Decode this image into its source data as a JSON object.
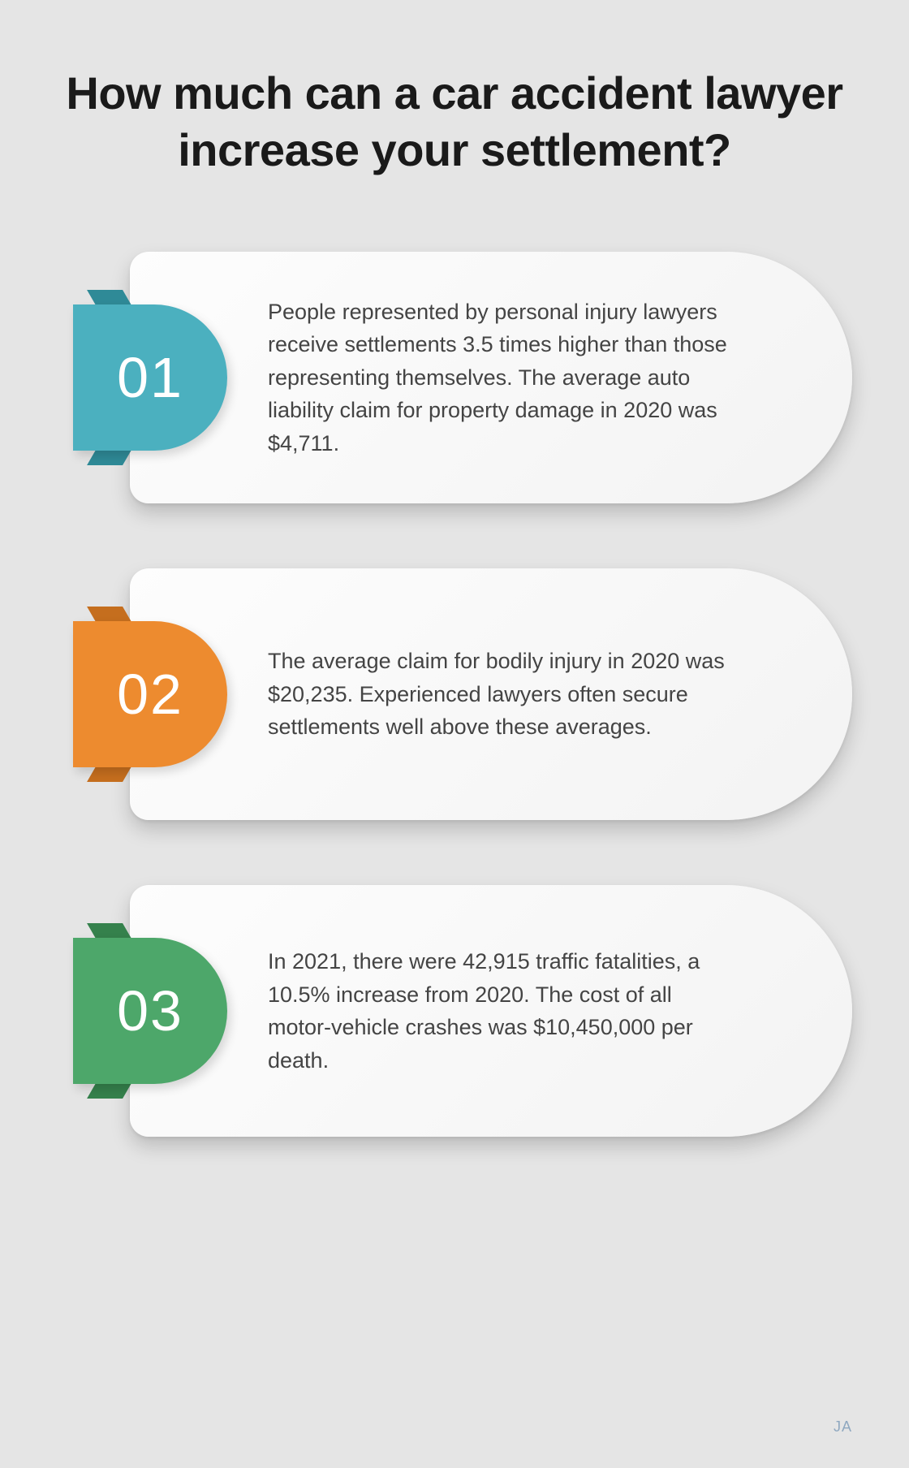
{
  "title": "How much can a car accident lawyer increase your settlement?",
  "items": [
    {
      "num": "01",
      "text": "People represented by personal injury lawyers receive settlements 3.5 times higher than those representing themselves. The average auto liability claim for property damage in 2020 was $4,711.",
      "badge_color": "#4bb0bf",
      "fold_color": "#2f8a97"
    },
    {
      "num": "02",
      "text": "The average claim for bodily injury in 2020 was $20,235. Experienced lawyers often secure settlements well above these averages.",
      "badge_color": "#ed8b2f",
      "fold_color": "#c56e1e"
    },
    {
      "num": "03",
      "text": "In 2021, there were 42,915 traffic fatalities, a 10.5% increase from 2020. The cost of all motor-vehicle crashes was $10,450,000 per death.",
      "badge_color": "#4da76a",
      "fold_color": "#35814c"
    }
  ],
  "logo_text": "JA"
}
